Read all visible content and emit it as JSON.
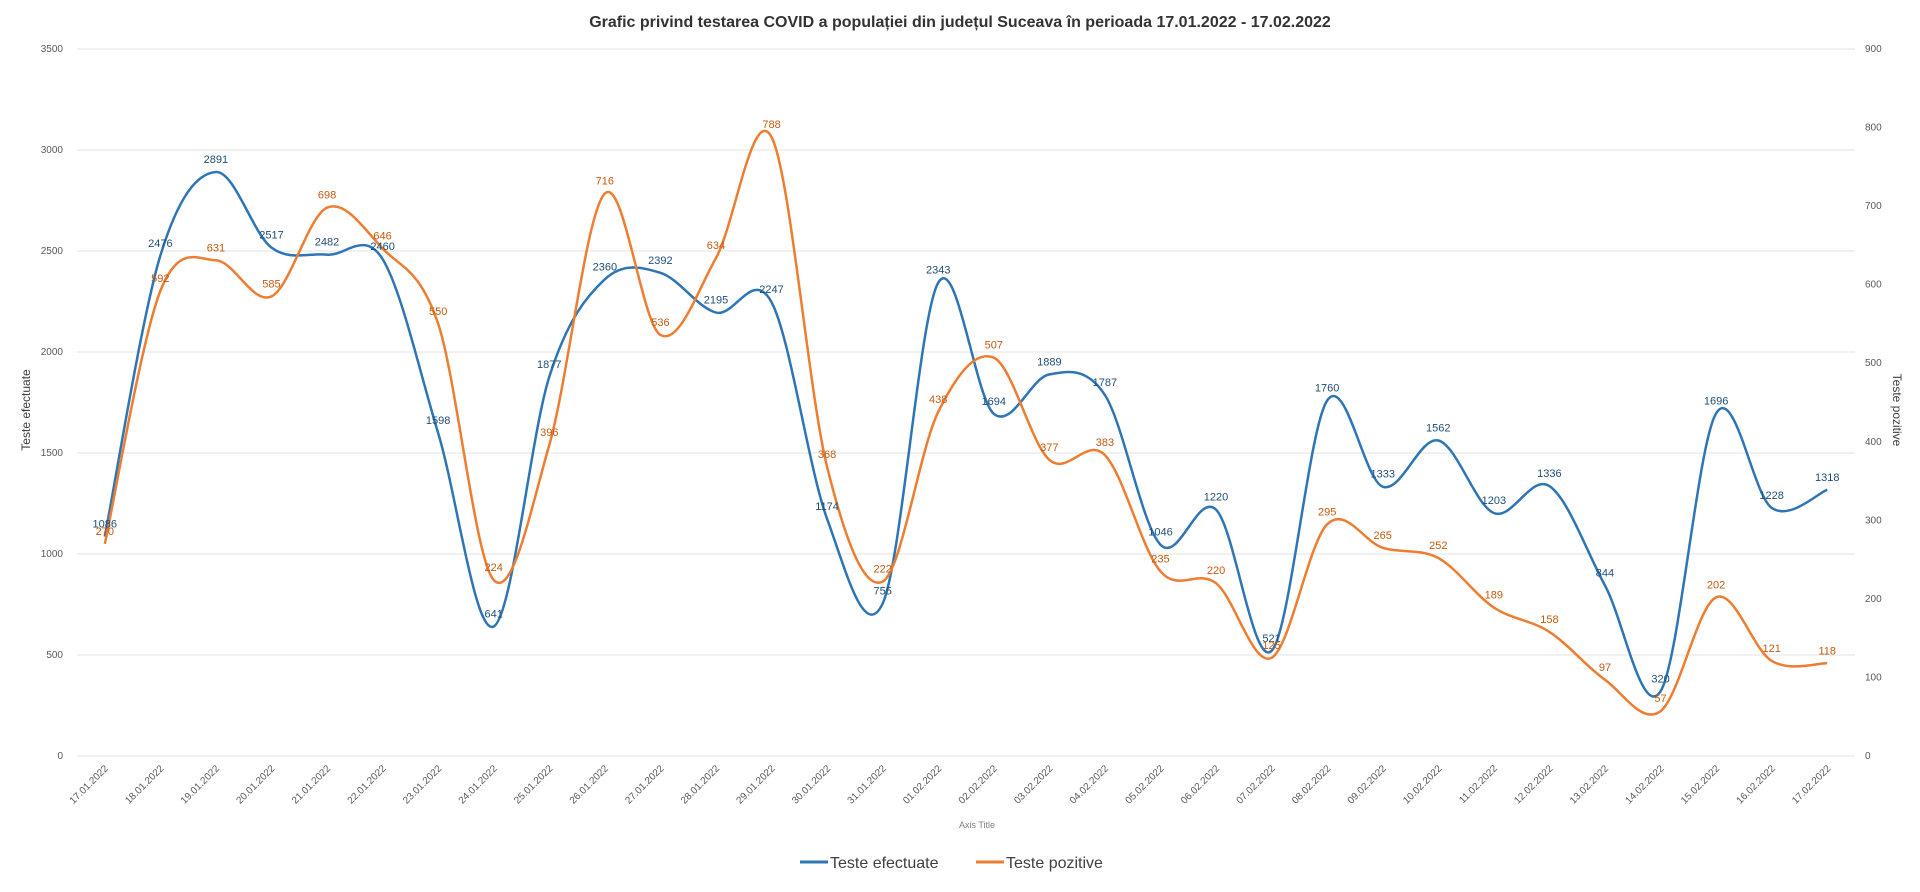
{
  "chart_data": {
    "type": "line",
    "title": "Grafic privind testarea COVID a populației din județul Suceava în perioada 17.01.2022 - 17.02.2022",
    "xlabel": "Axis Title",
    "ylabel_left": "Teste efectuate",
    "ylabel_right": "Teste pozitive",
    "ylim_left": [
      0,
      3500
    ],
    "yticks_left": [
      "0",
      "500",
      "1000",
      "1500",
      "2000",
      "2500",
      "3000",
      "3500"
    ],
    "ylim_right": [
      0,
      900
    ],
    "yticks_right": [
      "0",
      "100",
      "200",
      "300",
      "400",
      "500",
      "600",
      "700",
      "800",
      "900"
    ],
    "grid": true,
    "legend_position": "bottom",
    "categories": [
      "17.01.2022",
      "18.01.2022",
      "19.01.2022",
      "20.01.2022",
      "21.01.2022",
      "22.01.2022",
      "23.01.2022",
      "24.01.2022",
      "25.01.2022",
      "26.01.2022",
      "27.01.2022",
      "28.01.2022",
      "29.01.2022",
      "30.01.2022",
      "31.01.2022",
      "01.02.2022",
      "02.02.2022",
      "03.02.2022",
      "04.02.2022",
      "05.02.2022",
      "06.02.2022",
      "07.02.2022",
      "08.02.2022",
      "09.02.2022",
      "10.02.2022",
      "11.02.2022",
      "12.02.2022",
      "13.02.2022",
      "14.02.2022",
      "15.02.2022",
      "16.02.2022",
      "17.02.2022"
    ],
    "series": [
      {
        "name": "Teste efectuate",
        "axis": "left",
        "color": "#2E75B6",
        "values": [
          1086,
          2476,
          2891,
          2517,
          2482,
          2460,
          1598,
          641,
          1877,
          2360,
          2392,
          2195,
          2247,
          1174,
          755,
          2343,
          1694,
          1889,
          1787,
          1046,
          1220,
          521,
          1760,
          1333,
          1562,
          1203,
          1336,
          844,
          320,
          1696,
          1228,
          1318
        ]
      },
      {
        "name": "Teste pozitive",
        "axis": "right",
        "color": "#ED7D31",
        "values": [
          270,
          592,
          631,
          585,
          698,
          646,
          550,
          224,
          396,
          716,
          536,
          634,
          788,
          368,
          222,
          438,
          507,
          377,
          383,
          235,
          220,
          125,
          295,
          265,
          252,
          189,
          158,
          97,
          57,
          202,
          121,
          118
        ]
      }
    ]
  }
}
